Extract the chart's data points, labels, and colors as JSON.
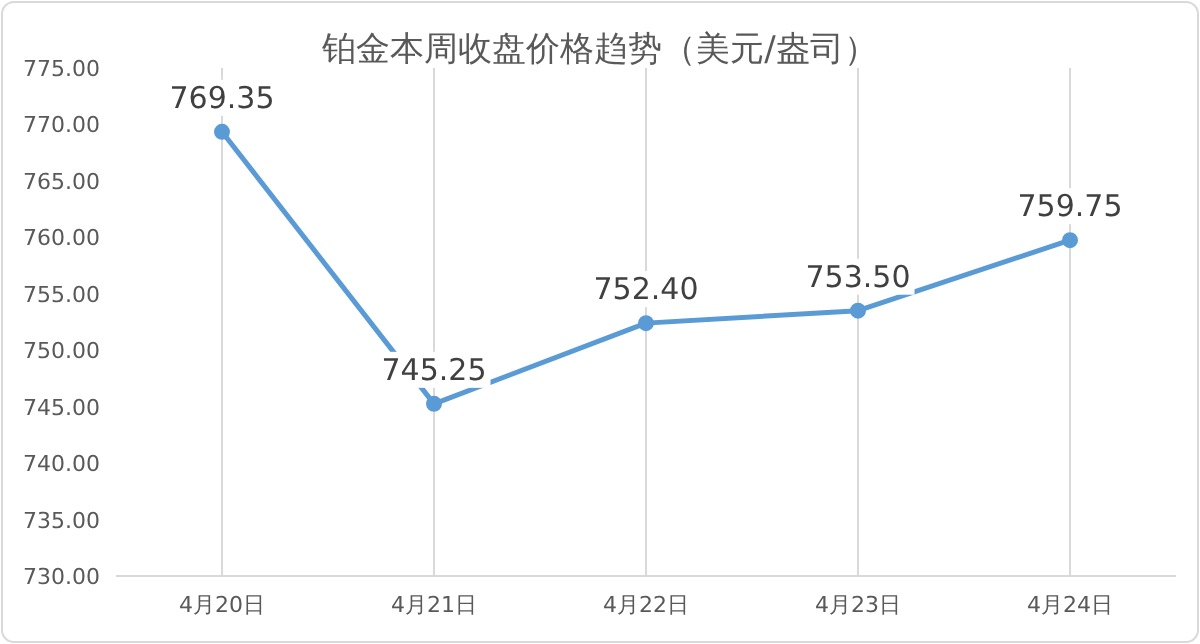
{
  "chart_data": {
    "type": "line",
    "title": "铂金本周收盘价格趋势（美元/盎司）",
    "categories": [
      "4月20日",
      "4月21日",
      "4月22日",
      "4月23日",
      "4月24日"
    ],
    "series": [
      {
        "color": "#5b9bd5",
        "values": [
          769.35,
          745.25,
          752.4,
          753.5,
          759.75
        ],
        "value_labels": [
          "769.35",
          "745.25",
          "752.40",
          "753.50",
          "759.75"
        ]
      }
    ],
    "ylim": [
      730,
      775
    ],
    "yticks": [
      {
        "value": 730,
        "label": "730.00"
      },
      {
        "value": 735,
        "label": "735.00"
      },
      {
        "value": 740,
        "label": "740.00"
      },
      {
        "value": 745,
        "label": "745.00"
      },
      {
        "value": 750,
        "label": "750.00"
      },
      {
        "value": 755,
        "label": "755.00"
      },
      {
        "value": 760,
        "label": "760.00"
      },
      {
        "value": 765,
        "label": "765.00"
      },
      {
        "value": 770,
        "label": "770.00"
      },
      {
        "value": 775,
        "label": "775.00"
      }
    ],
    "grid": "x",
    "marker": "circle",
    "line_style": "solid"
  }
}
